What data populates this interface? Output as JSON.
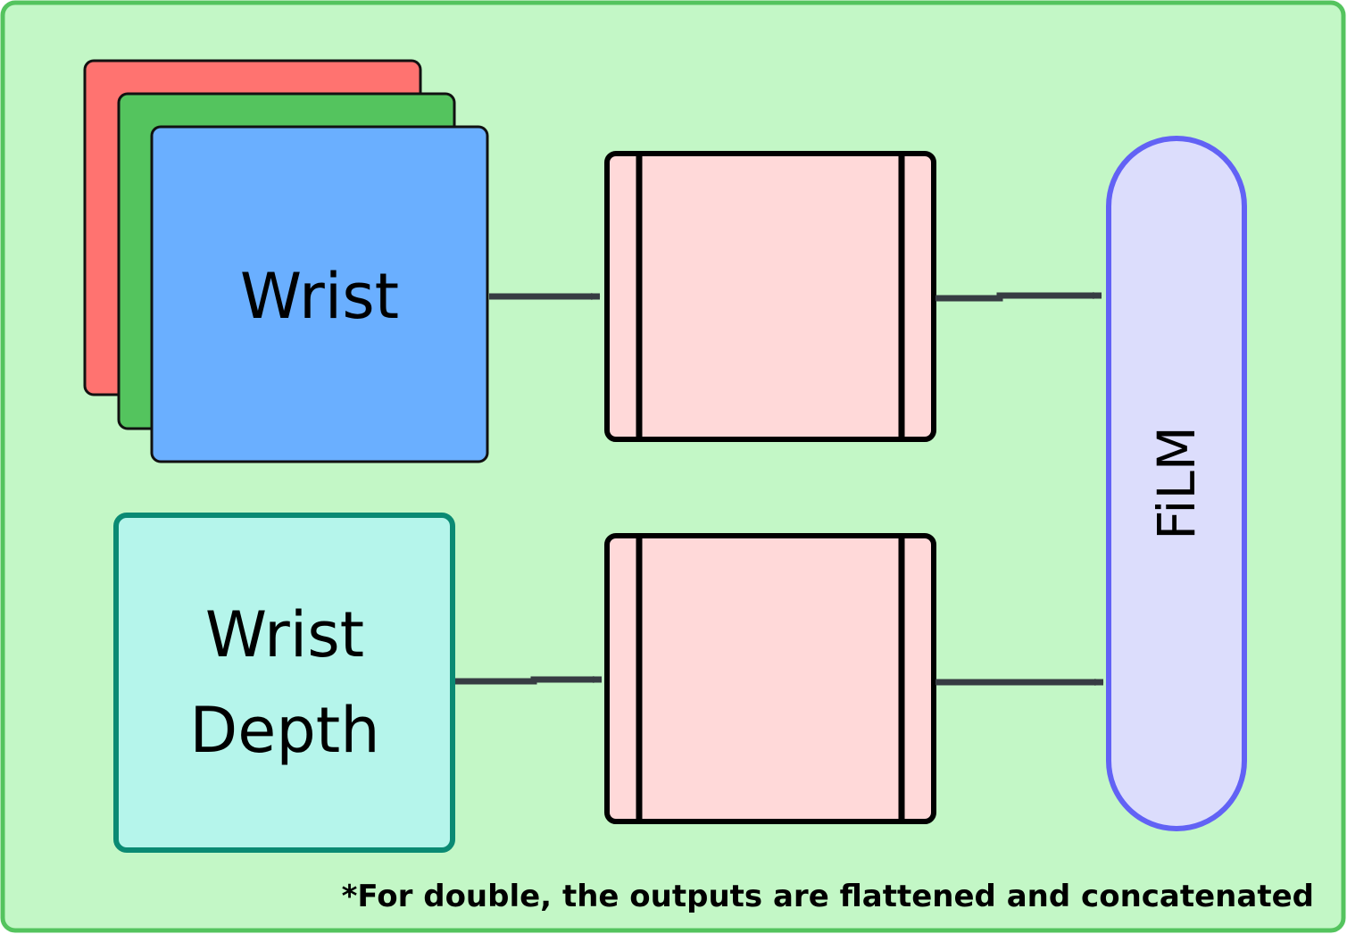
{
  "diagram": {
    "colors": {
      "background": "#c3f7c6",
      "border": "#54c45e",
      "stack_red": "#ff7370",
      "stack_green": "#54c45e",
      "stack_blue": "#6aafff",
      "depth_fill": "#b5f5eb",
      "depth_stroke": "#0a8a73",
      "encoder_fill": "#ffd9d9",
      "film_fill": "#dcddfc",
      "film_stroke": "#6262f5",
      "arrow": "#373c43"
    },
    "wrist_label": "Wrist",
    "depth_label_line1": "Wrist",
    "depth_label_line2": "Depth",
    "film_label": "FiLM",
    "footnote": "*For double, the outputs are flattened and concatenated"
  }
}
